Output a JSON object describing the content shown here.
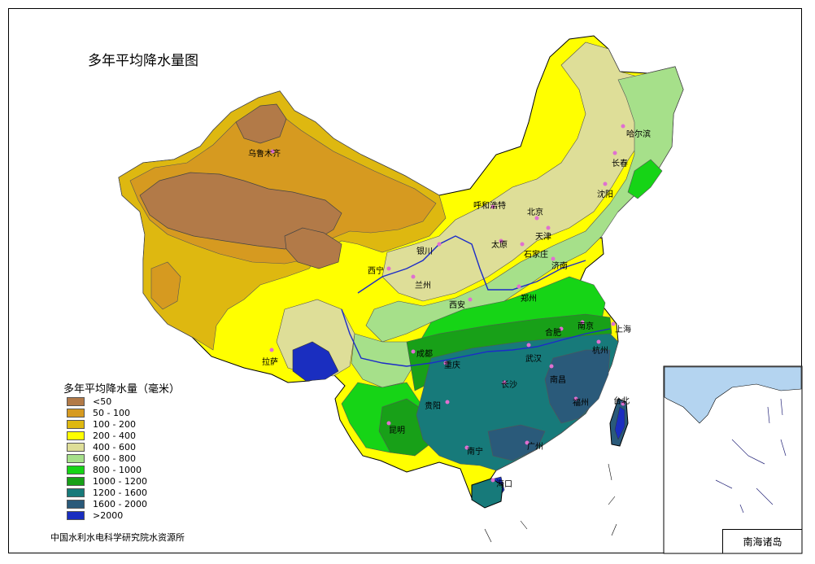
{
  "title": "多年平均降水量图",
  "legend": {
    "title": "多年平均降水量（毫米）",
    "items": [
      {
        "label": "<50",
        "color": "#b27a48"
      },
      {
        "label": "50 - 100",
        "color": "#d69a20"
      },
      {
        "label": "100 - 200",
        "color": "#deb810"
      },
      {
        "label": "200 - 400",
        "color": "#ffff00"
      },
      {
        "label": "400 - 600",
        "color": "#dede98"
      },
      {
        "label": "600 - 800",
        "color": "#a6e08a"
      },
      {
        "label": "800 - 1000",
        "color": "#16d416"
      },
      {
        "label": "1000 - 1200",
        "color": "#18a018"
      },
      {
        "label": "1200 - 1600",
        "color": "#177a7a"
      },
      {
        "label": "1600 - 2000",
        "color": "#2a5a7a"
      },
      {
        "label": ">2000",
        "color": "#1a2ec0"
      }
    ]
  },
  "cities": [
    {
      "id": "urumqi",
      "name": "乌鲁木齐"
    },
    {
      "id": "harbin",
      "name": "哈尔滨"
    },
    {
      "id": "changchun",
      "name": "长春"
    },
    {
      "id": "shenyang",
      "name": "沈阳"
    },
    {
      "id": "hohhot",
      "name": "呼和浩特"
    },
    {
      "id": "beijing",
      "name": "北京"
    },
    {
      "id": "tianjin",
      "name": "天津"
    },
    {
      "id": "taiyuan",
      "name": "太原"
    },
    {
      "id": "shijiazhuang",
      "name": "石家庄"
    },
    {
      "id": "yinchuan",
      "name": "银川"
    },
    {
      "id": "xining",
      "name": "西宁"
    },
    {
      "id": "lanzhou",
      "name": "兰州"
    },
    {
      "id": "jinan",
      "name": "济南"
    },
    {
      "id": "zhengzhou",
      "name": "郑州"
    },
    {
      "id": "xian",
      "name": "西安"
    },
    {
      "id": "nanjing",
      "name": "南京"
    },
    {
      "id": "shanghai",
      "name": "上海"
    },
    {
      "id": "hefei",
      "name": "合肥"
    },
    {
      "id": "hangzhou",
      "name": "杭州"
    },
    {
      "id": "wuhan",
      "name": "武汉"
    },
    {
      "id": "chengdu",
      "name": "成都"
    },
    {
      "id": "chongqing",
      "name": "重庆"
    },
    {
      "id": "lhasa",
      "name": "拉萨"
    },
    {
      "id": "changsha",
      "name": "长沙"
    },
    {
      "id": "nanchang",
      "name": "南昌"
    },
    {
      "id": "fuzhou",
      "name": "福州"
    },
    {
      "id": "taibei",
      "name": "台北"
    },
    {
      "id": "guiyang",
      "name": "贵阳"
    },
    {
      "id": "kunming",
      "name": "昆明"
    },
    {
      "id": "nanning",
      "name": "南宁"
    },
    {
      "id": "guangzhou",
      "name": "广州"
    },
    {
      "id": "haikou",
      "name": "海口"
    }
  ],
  "credit": "中国水利水电科学研究院水资源所",
  "inset": {
    "label": "南海诸岛",
    "sea_color": "#b4d4f0"
  },
  "colors": {
    "river": "#1c2cc8",
    "city_dot": "#e070d0"
  }
}
